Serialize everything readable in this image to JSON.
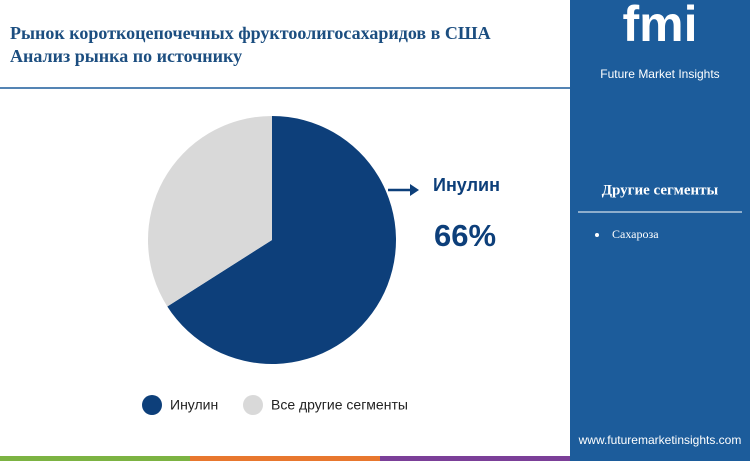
{
  "chart_data": {
    "type": "pie",
    "title": "Рынок короткоцепочечных фруктоолигосахаридов в США",
    "subtitle": "Анализ рынка по источнику",
    "categories": [
      "Инулин",
      "Все другие сегменты"
    ],
    "values": [
      66,
      34
    ],
    "value_labels": [
      "66%",
      null
    ],
    "colors": [
      "#0d3f7a",
      "#d9d9d9"
    ]
  },
  "sidebar": {
    "heading": "Другие сегменты",
    "items": [
      "Сахароза"
    ]
  },
  "brand": {
    "logo": "fmi",
    "name": "Future Market Insights",
    "url": "www.futuremarketinsights.com"
  }
}
